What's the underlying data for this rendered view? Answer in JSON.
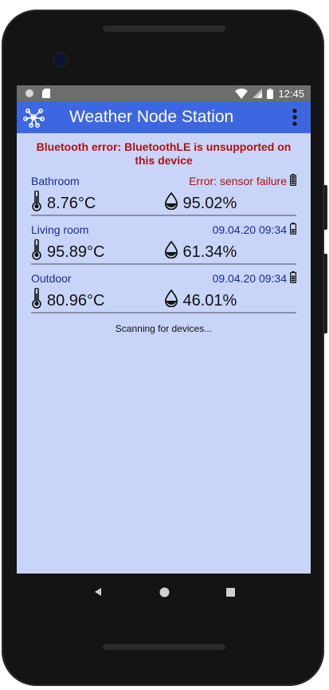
{
  "status_bar": {
    "time": "12:45"
  },
  "app_bar": {
    "title": "Weather Node Station",
    "app_icon": "network-nodes-icon",
    "menu_icon": "more-vert-icon"
  },
  "error_banner": "Bluetooth error: BluetoothLE is unsupported on this device",
  "sensors": [
    {
      "name": "Bathroom",
      "status": "Error: sensor failure",
      "status_is_error": true,
      "temperature": "8.76°C",
      "humidity": "95.02%",
      "battery": "full"
    },
    {
      "name": "Living room",
      "status": "09.04.20 09:34",
      "status_is_error": false,
      "temperature": "95.89°C",
      "humidity": "61.34%",
      "battery": "low"
    },
    {
      "name": "Outdoor",
      "status": "09.04.20 09:34",
      "status_is_error": false,
      "temperature": "80.96°C",
      "humidity": "46.01%",
      "battery": "medium"
    }
  ],
  "scanning_text": "Scanning for devices...",
  "colors": {
    "app_bar": "#3d67e0",
    "screen_bg": "#c9d5f8",
    "error": "#b01010",
    "label": "#1a2a9a"
  }
}
